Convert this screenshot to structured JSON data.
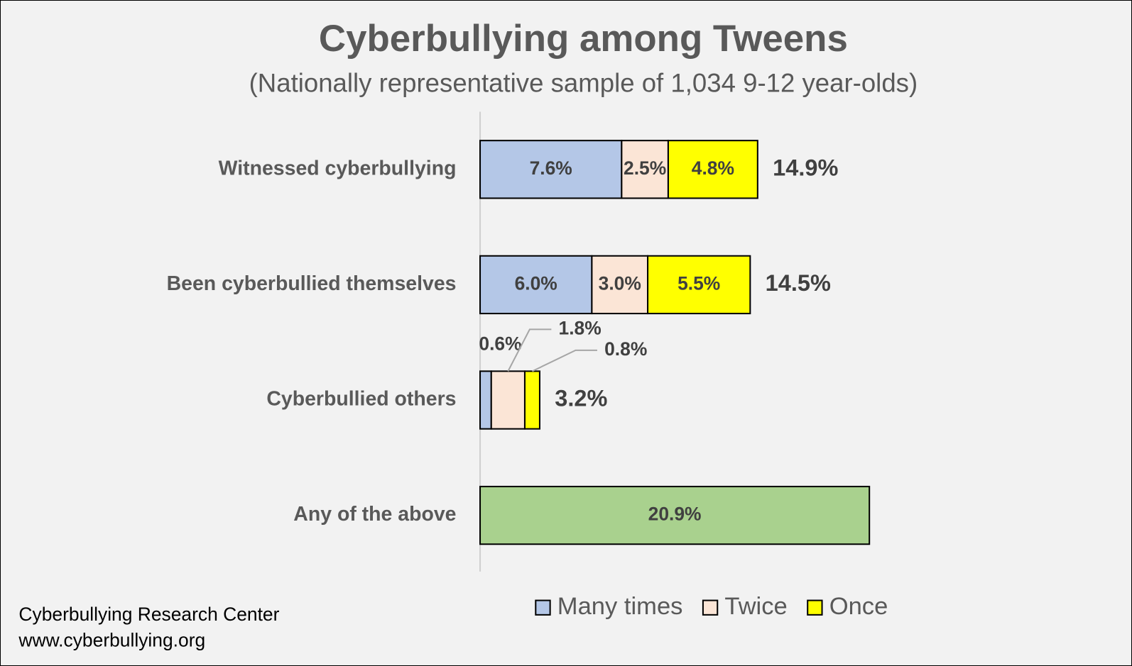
{
  "chart_data": {
    "type": "stacked-bar-horizontal",
    "title": "Cyberbullying among Tweens",
    "subtitle": "(Nationally representative sample of 1,034 9-12 year-olds)",
    "categories": [
      "Witnessed cyberbullying",
      "Been cyberbullied themselves",
      "Cyberbullied others",
      "Any of the above"
    ],
    "series": [
      {
        "name": "Many times",
        "color": "#b4c7e7",
        "values": [
          7.6,
          6.0,
          0.6,
          null
        ],
        "value_labels": [
          "7.6%",
          "6.0%",
          "0.6%",
          null
        ]
      },
      {
        "name": "Twice",
        "color": "#fbe5d6",
        "values": [
          2.5,
          3.0,
          1.8,
          null
        ],
        "value_labels": [
          "2.5%",
          "3.0%",
          "1.8%",
          null
        ]
      },
      {
        "name": "Once",
        "color": "#ffff00",
        "values": [
          4.8,
          5.5,
          0.8,
          null
        ],
        "value_labels": [
          "4.8%",
          "5.5%",
          "0.8%",
          null
        ]
      }
    ],
    "highlight": {
      "color": "#a9d18e",
      "values": [
        null,
        null,
        null,
        20.9
      ],
      "value_labels": [
        null,
        null,
        null,
        "20.9%"
      ]
    },
    "totals": [
      14.9,
      14.5,
      3.2,
      null
    ],
    "total_labels": [
      "14.9%",
      "14.5%",
      "3.2%",
      null
    ],
    "xlim": [
      0,
      25
    ],
    "legend": "bottom",
    "source": [
      "Cyberbullying Research Center",
      "www.cyberbullying.org"
    ]
  }
}
